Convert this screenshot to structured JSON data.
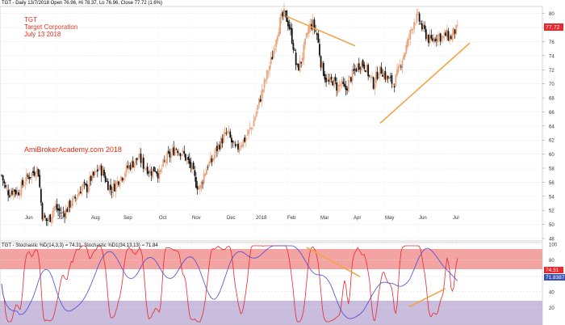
{
  "header": {
    "price_line": "TGT - Daily 13/7/2018 Open 76.96, Hi 78.37, Lo 76.96, Close 77.72 (1.6%)",
    "stoch_line": "TGT - Stochastic %D(14,3,3) = 74.31, Stochastic %D1(34,13,13) = 71.84"
  },
  "annotation": {
    "ticker": "TGT",
    "company": "Target Corporation",
    "date": "July 13 2018",
    "watermark": "AmiBrokerAcademy.com  2018"
  },
  "colors": {
    "up_candle": "#e8a27a",
    "down_candle": "#111111",
    "trendline": "#f0a64a",
    "stoch_fast": "#e8282e",
    "stoch_slow": "#4a4ad6",
    "overbought_zone": "#f4a3a3",
    "oversold_zone": "#c9bcdc",
    "price_tag": "#e8282e",
    "stoch_tag_fast": "#e8282e",
    "stoch_tag_slow": "#3b4fb8"
  },
  "price_axis": {
    "ticks": [
      "80",
      "78",
      "76",
      "74",
      "72",
      "70",
      "68",
      "66",
      "64",
      "62",
      "60",
      "58",
      "56",
      "54",
      "52",
      "50",
      "48"
    ],
    "last_price_tag": "77.72"
  },
  "stoch_axis": {
    "ticks": [
      "100",
      "80",
      "60",
      "40",
      "20"
    ],
    "tag_fast": "74.31",
    "tag_slow": "71.8387"
  },
  "x_axis": {
    "months": [
      "Jun",
      "Jul",
      "Aug",
      "Sep",
      "Oct",
      "Nov",
      "Dec",
      "2018",
      "Feb",
      "Mar",
      "Apr",
      "May",
      "Jun",
      "Jul"
    ]
  },
  "chart_data": {
    "type": "candlestick",
    "title": "TGT - Daily 13/7/2018 Open 76.96, Hi 78.37, Lo 76.96, Close 77.72 (1.6%)",
    "ylim": [
      48,
      81
    ],
    "months": [
      "Jun",
      "Jul",
      "Aug",
      "Sep",
      "Oct",
      "Nov",
      "Dec",
      "2018",
      "Feb",
      "Mar",
      "Apr",
      "May",
      "Jun",
      "Jul"
    ],
    "price_path": [
      [
        0,
        57
      ],
      [
        4,
        55
      ],
      [
        8,
        54.5
      ],
      [
        12,
        55
      ],
      [
        16,
        54.5
      ],
      [
        20,
        55.5
      ],
      [
        24,
        56.5
      ],
      [
        28,
        57
      ],
      [
        32,
        57.5
      ],
      [
        36,
        58
      ],
      [
        40,
        51.5
      ],
      [
        44,
        50.5
      ],
      [
        48,
        51
      ],
      [
        52,
        52.5
      ],
      [
        56,
        52
      ],
      [
        60,
        51.5
      ],
      [
        64,
        52
      ],
      [
        68,
        53
      ],
      [
        72,
        53.5
      ],
      [
        76,
        54.5
      ],
      [
        80,
        55.5
      ],
      [
        84,
        55
      ],
      [
        88,
        56.5
      ],
      [
        92,
        57
      ],
      [
        96,
        58
      ],
      [
        100,
        57.5
      ],
      [
        104,
        56
      ],
      [
        108,
        55
      ],
      [
        112,
        55.5
      ],
      [
        116,
        56.5
      ],
      [
        120,
        57
      ],
      [
        124,
        58
      ],
      [
        128,
        58.5
      ],
      [
        132,
        59
      ],
      [
        136,
        59.5
      ],
      [
        140,
        58.5
      ],
      [
        144,
        58
      ],
      [
        148,
        57.5
      ],
      [
        152,
        58
      ],
      [
        156,
        57
      ],
      [
        160,
        58.5
      ],
      [
        164,
        59.5
      ],
      [
        168,
        60
      ],
      [
        172,
        61
      ],
      [
        176,
        60.5
      ],
      [
        180,
        60
      ],
      [
        184,
        59
      ],
      [
        188,
        58
      ],
      [
        192,
        56
      ],
      [
        196,
        55
      ],
      [
        200,
        57
      ],
      [
        204,
        58.5
      ],
      [
        208,
        59
      ],
      [
        212,
        60.5
      ],
      [
        216,
        61.5
      ],
      [
        220,
        62.5
      ],
      [
        224,
        63
      ],
      [
        228,
        61.5
      ],
      [
        232,
        60.5
      ],
      [
        236,
        61.5
      ],
      [
        240,
        62
      ],
      [
        244,
        63
      ],
      [
        248,
        64
      ],
      [
        252,
        66
      ],
      [
        256,
        68
      ],
      [
        260,
        70
      ],
      [
        264,
        72
      ],
      [
        268,
        74
      ],
      [
        272,
        77
      ],
      [
        276,
        79
      ],
      [
        280,
        80
      ],
      [
        284,
        78.5
      ],
      [
        288,
        76
      ],
      [
        292,
        72
      ],
      [
        296,
        73
      ],
      [
        300,
        75.5
      ],
      [
        304,
        78
      ],
      [
        308,
        78.5
      ],
      [
        312,
        77
      ],
      [
        316,
        73
      ],
      [
        320,
        71
      ],
      [
        324,
        70
      ],
      [
        328,
        70.5
      ],
      [
        332,
        69.5
      ],
      [
        336,
        70
      ],
      [
        340,
        69
      ],
      [
        344,
        70.5
      ],
      [
        348,
        71.5
      ],
      [
        352,
        72.5
      ],
      [
        356,
        73
      ],
      [
        360,
        72.5
      ],
      [
        364,
        71
      ],
      [
        368,
        70
      ],
      [
        372,
        71.5
      ],
      [
        376,
        72
      ],
      [
        380,
        71
      ],
      [
        384,
        70.5
      ],
      [
        388,
        70
      ],
      [
        392,
        71.5
      ],
      [
        396,
        73.5
      ],
      [
        400,
        75
      ],
      [
        404,
        77
      ],
      [
        408,
        79
      ],
      [
        412,
        79.5
      ],
      [
        416,
        78
      ],
      [
        420,
        77
      ],
      [
        424,
        76
      ],
      [
        428,
        76.5
      ],
      [
        432,
        77
      ],
      [
        436,
        76.5
      ],
      [
        440,
        77
      ],
      [
        444,
        76.5
      ],
      [
        448,
        77.5
      ],
      [
        452,
        77.72
      ]
    ],
    "trendlines": [
      {
        "from": [
          355,
          79.6
        ],
        "to": [
          440,
          75.4
        ]
      },
      {
        "from": [
          471,
          64.4
        ],
        "to": [
          582,
          75.8
        ]
      }
    ],
    "stochastic": {
      "ylim": [
        0,
        100
      ],
      "overbought": 80,
      "oversold": 20,
      "fast_value": 74.31,
      "slow_value": 71.8387,
      "trendlines": [
        {
          "from": [
            380,
            96
          ],
          "to": [
            446,
            59
          ]
        },
        {
          "from": [
            507,
            21
          ],
          "to": [
            552,
            44
          ]
        }
      ]
    }
  }
}
